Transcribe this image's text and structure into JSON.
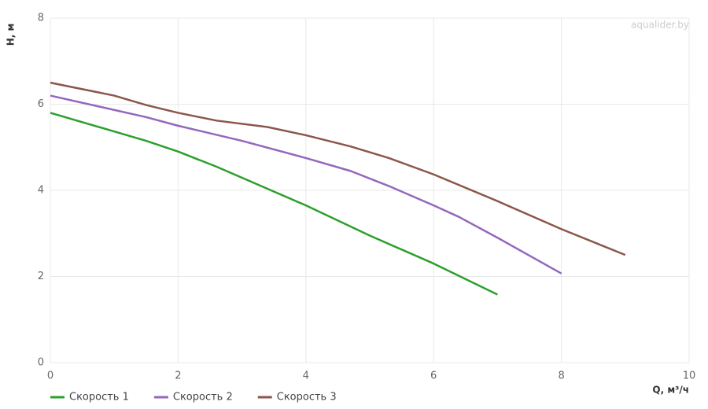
{
  "chart_data": {
    "type": "line",
    "watermark": "aqualider.by",
    "xlabel": "Q, м³/ч",
    "ylabel": "H, м",
    "xlim": [
      0,
      10
    ],
    "xticks": [
      0,
      2,
      4,
      6,
      8,
      10
    ],
    "ylim": [
      0,
      8
    ],
    "yticks": [
      0,
      2,
      4,
      6,
      8
    ],
    "grid": true,
    "legend": "bottom-left",
    "series": [
      {
        "name": "Скорость 1",
        "color": "#2ca02c",
        "x": [
          0,
          1.5,
          2,
          2.6,
          4,
          5,
          6,
          7
        ],
        "values": [
          5.8,
          5.15,
          4.9,
          4.55,
          3.65,
          2.95,
          2.3,
          1.58
        ]
      },
      {
        "name": "Скорость 2",
        "color": "#9467bd",
        "x": [
          0,
          1.5,
          2,
          3,
          4,
          4.7,
          5.3,
          6,
          6.4,
          7,
          8
        ],
        "values": [
          6.2,
          5.7,
          5.5,
          5.15,
          4.75,
          4.45,
          4.1,
          3.65,
          3.38,
          2.9,
          2.07
        ]
      },
      {
        "name": "Скорость 3",
        "color": "#8c564b",
        "x": [
          0,
          1,
          1.5,
          2,
          2.6,
          3.4,
          4,
          4.7,
          5.3,
          6,
          7,
          8,
          9
        ],
        "values": [
          6.5,
          6.2,
          5.98,
          5.8,
          5.62,
          5.47,
          5.28,
          5.02,
          4.75,
          4.37,
          3.75,
          3.1,
          2.5
        ]
      }
    ]
  }
}
